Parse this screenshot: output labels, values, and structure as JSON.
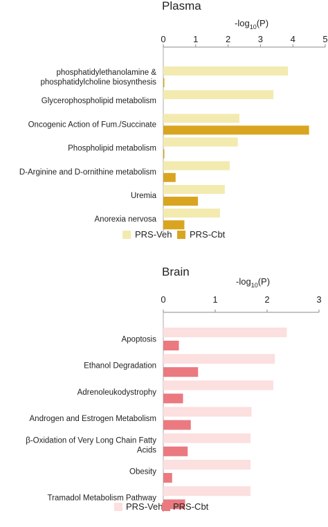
{
  "chart_data": [
    {
      "type": "bar",
      "orientation": "horizontal",
      "title": "Plasma",
      "xlabel": "-log10(P)",
      "xlabel_main": "-log",
      "xlabel_sub": "10",
      "xlabel_tail": "(P)",
      "xlim": [
        0,
        5
      ],
      "xticks": [
        "0",
        "1",
        "2",
        "3",
        "4",
        "5"
      ],
      "xtick_values": [
        0,
        1,
        2,
        3,
        4,
        5
      ],
      "categories": [
        [
          "phosphatidylethanolamine &",
          "phosphatidylcholine biosynthesis"
        ],
        [
          "Glycerophospholipid metabolism"
        ],
        [
          "Oncogenic Action of Fum./Succinate"
        ],
        [
          "Phospholipid metabolism"
        ],
        [
          "D-Arginine and D-ornithine metabolism"
        ],
        [
          "Uremia"
        ],
        [
          "Anorexia nervosa"
        ]
      ],
      "series": [
        {
          "name": "PRS-Veh",
          "color": "#f3eab0",
          "values": [
            3.85,
            3.4,
            2.35,
            2.3,
            2.05,
            1.9,
            1.75
          ]
        },
        {
          "name": "PRS-Cbt",
          "color": "#d9a520",
          "values": [
            0.02,
            0.0,
            4.5,
            0.02,
            0.38,
            1.07,
            0.65
          ]
        }
      ],
      "legend_position": "bottom"
    },
    {
      "type": "bar",
      "orientation": "horizontal",
      "title": "Brain",
      "xlabel": "-log10(P)",
      "xlabel_main": "-log",
      "xlabel_sub": "10",
      "xlabel_tail": "(P)",
      "xlim": [
        0,
        3
      ],
      "xticks": [
        "0",
        "1",
        "2",
        "3"
      ],
      "xtick_values": [
        0,
        1,
        2,
        3
      ],
      "categories": [
        [
          "Apoptosis"
        ],
        [
          "Ethanol Degradation"
        ],
        [
          "Adrenoleukodystrophy"
        ],
        [
          "Androgen and Estrogen Metabolism"
        ],
        [
          "β-Oxidation of Very Long Chain Fatty",
          "Acids"
        ],
        [
          "Obesity"
        ],
        [
          "Tramadol Metabolism Pathway"
        ]
      ],
      "series": [
        {
          "name": "PRS-Veh",
          "color": "#fcdfdf",
          "values": [
            2.38,
            2.15,
            2.12,
            1.7,
            1.68,
            1.68,
            1.68
          ]
        },
        {
          "name": "PRS-Cbt",
          "color": "#ea7a80",
          "values": [
            0.3,
            0.67,
            0.38,
            0.53,
            0.47,
            0.17,
            0.42
          ]
        }
      ],
      "legend_position": "bottom"
    }
  ]
}
